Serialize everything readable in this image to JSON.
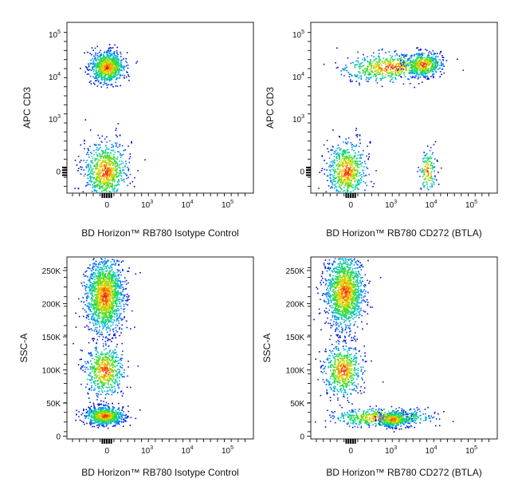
{
  "chart_data": [
    {
      "type": "scatter",
      "title": "",
      "xlabel": "BD Horizon™ RB780 Isotype Control",
      "ylabel": "APC CD3",
      "x_scale": "biexponential",
      "y_scale": "biexponential",
      "x_ticks": [
        {
          "value": 0,
          "label": "0"
        },
        {
          "value": 1000,
          "label": "10^3"
        },
        {
          "value": 10000,
          "label": "10^4"
        },
        {
          "value": 100000,
          "label": "10^5"
        }
      ],
      "y_ticks": [
        {
          "value": 0,
          "label": "0"
        },
        {
          "value": 1000,
          "label": "10^3"
        },
        {
          "value": 10000,
          "label": "10^4"
        },
        {
          "value": 100000,
          "label": "10^5"
        }
      ],
      "populations": [
        {
          "name": "",
          "x_center": 0,
          "y_center": 22000,
          "approx_events": 900
        },
        {
          "name": "",
          "x_center": 0,
          "y_center": 0,
          "approx_events": 800
        }
      ]
    },
    {
      "type": "scatter",
      "title": "",
      "xlabel": "BD Horizon™ RB780 CD272 (BTLA)",
      "ylabel": "APC CD3",
      "x_scale": "biexponential",
      "y_scale": "biexponential",
      "x_ticks": [
        {
          "value": 0,
          "label": "0"
        },
        {
          "value": 1000,
          "label": "10^3"
        },
        {
          "value": 10000,
          "label": "10^4"
        },
        {
          "value": 100000,
          "label": "10^5"
        }
      ],
      "y_ticks": [
        {
          "value": 0,
          "label": "0"
        },
        {
          "value": 1000,
          "label": "10^3"
        },
        {
          "value": 10000,
          "label": "10^4"
        },
        {
          "value": 100000,
          "label": "10^5"
        }
      ],
      "populations": [
        {
          "name": "",
          "x_range": [
            -300,
            20000
          ],
          "y_center": 22000,
          "approx_events": 1100
        },
        {
          "name": "",
          "x_center": 0,
          "y_center": 0,
          "approx_events": 700
        },
        {
          "name": "",
          "x_center": 8000,
          "y_center": 0,
          "approx_events": 150
        }
      ]
    },
    {
      "type": "scatter",
      "title": "",
      "xlabel": "BD Horizon™ RB780 Isotype Control",
      "ylabel": "SSC-A",
      "x_scale": "biexponential",
      "y_scale": "linear",
      "ylim": [
        0,
        262144
      ],
      "x_ticks": [
        {
          "value": 0,
          "label": "0"
        },
        {
          "value": 1000,
          "label": "10^3"
        },
        {
          "value": 10000,
          "label": "10^4"
        },
        {
          "value": 100000,
          "label": "10^5"
        }
      ],
      "y_ticks": [
        {
          "value": 0,
          "label": "0"
        },
        {
          "value": 50000,
          "label": "50K"
        },
        {
          "value": 100000,
          "label": "100K"
        },
        {
          "value": 150000,
          "label": "150K"
        },
        {
          "value": 200000,
          "label": "200K"
        },
        {
          "value": 250000,
          "label": "250K"
        }
      ],
      "populations": [
        {
          "name": "",
          "x_center": 0,
          "y_center": 210000,
          "approx_events": 1600
        },
        {
          "name": "",
          "x_center": 0,
          "y_center": 100000,
          "approx_events": 600
        },
        {
          "name": "",
          "x_center": 0,
          "y_center": 35000,
          "approx_events": 800
        }
      ]
    },
    {
      "type": "scatter",
      "title": "",
      "xlabel": "BD Horizon™ RB780 CD272 (BTLA)",
      "ylabel": "SSC-A",
      "x_scale": "biexponential",
      "y_scale": "linear",
      "ylim": [
        0,
        262144
      ],
      "x_ticks": [
        {
          "value": 0,
          "label": "0"
        },
        {
          "value": 1000,
          "label": "10^3"
        },
        {
          "value": 10000,
          "label": "10^4"
        },
        {
          "value": 100000,
          "label": "10^5"
        }
      ],
      "y_ticks": [
        {
          "value": 0,
          "label": "0"
        },
        {
          "value": 50000,
          "label": "50K"
        },
        {
          "value": 100000,
          "label": "100K"
        },
        {
          "value": 150000,
          "label": "150K"
        },
        {
          "value": 200000,
          "label": "200K"
        },
        {
          "value": 250000,
          "label": "250K"
        }
      ],
      "populations": [
        {
          "name": "",
          "x_center": 0,
          "y_center": 215000,
          "approx_events": 1500
        },
        {
          "name": "",
          "x_center": 0,
          "y_center": 100000,
          "approx_events": 600
        },
        {
          "name": "",
          "x_range": [
            0,
            20000
          ],
          "y_center": 32000,
          "approx_events": 1000
        }
      ]
    }
  ],
  "colors": {
    "density_low": "#0000cc",
    "density_mid": "#00c8d0",
    "density_midhigh": "#30e000",
    "density_high": "#ffd000",
    "density_max": "#e02000"
  }
}
